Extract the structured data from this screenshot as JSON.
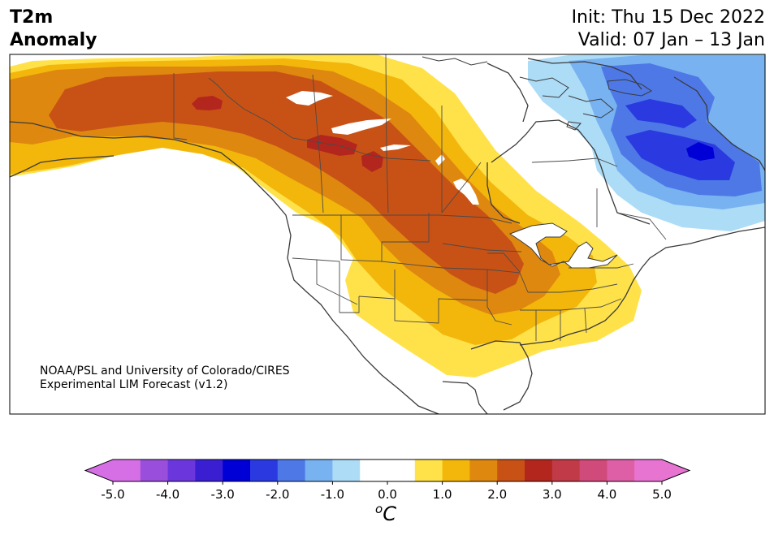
{
  "title": {
    "left_line1": "T2m",
    "left_line2": "Anomaly",
    "right_line1": "Init: Thu 15 Dec 2022",
    "right_line2": "Valid: 07 Jan – 13 Jan"
  },
  "credit": {
    "line1": "NOAA/PSL and University of Colorado/CIRES",
    "line2": "Experimental LIM Forecast (v1.2)"
  },
  "colorbar": {
    "unit_sup": "o",
    "unit": "C",
    "ticks": [
      "-5.0",
      "-4.0",
      "-3.0",
      "-2.0",
      "-1.0",
      "0.0",
      "1.0",
      "2.0",
      "3.0",
      "4.0",
      "5.0"
    ],
    "extend": "both",
    "levels": [
      -5.0,
      -4.5,
      -4.0,
      -3.5,
      -3.0,
      -2.5,
      -2.0,
      -1.5,
      -1.0,
      -0.5,
      0.5,
      1.0,
      1.5,
      2.0,
      2.5,
      3.0,
      3.5,
      4.0,
      4.5,
      5.0
    ],
    "colors": [
      "#d66ee6",
      "#9a4fdc",
      "#6b37dc",
      "#3a1fd2",
      "#0000d6",
      "#2a3ae0",
      "#4d78e6",
      "#78b2f0",
      "#addcf7",
      "#ffffff",
      "#ffe24a",
      "#f3b70c",
      "#df880f",
      "#c85216",
      "#b3261e",
      "#c03a48",
      "#d04a7a",
      "#de5fa6",
      "#e874d2"
    ],
    "under_color": "#d66ee6",
    "over_color": "#e874d2"
  },
  "map_colors": {
    "yellow": "#ffe24a",
    "gold": "#f3b70c",
    "orange": "#df880f",
    "dark_orange": "#c85216",
    "red": "#b3261e",
    "light_blue": "#addcf7",
    "sky_blue": "#78b2f0",
    "mid_blue": "#4d78e6",
    "blue": "#2a3ae0",
    "deep_blue": "#0000d6"
  }
}
